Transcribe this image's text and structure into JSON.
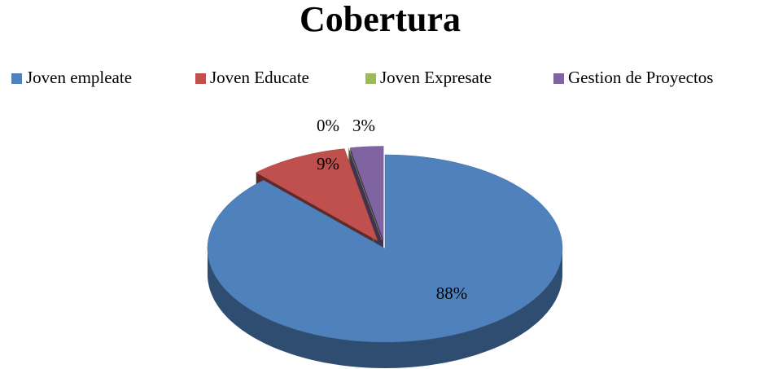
{
  "chart_data": {
    "type": "pie",
    "title": "Cobertura",
    "categories": [
      "Joven empleate",
      "Joven Educate",
      "Joven Expresate",
      "Gestion de Proyectos"
    ],
    "values": [
      88,
      9,
      0,
      3
    ],
    "value_labels": [
      "88%",
      "9%",
      "0%",
      "3%"
    ],
    "colors": [
      "#4f81bd",
      "#c0504d",
      "#9bbb59",
      "#8064a2"
    ],
    "legend": "top"
  }
}
